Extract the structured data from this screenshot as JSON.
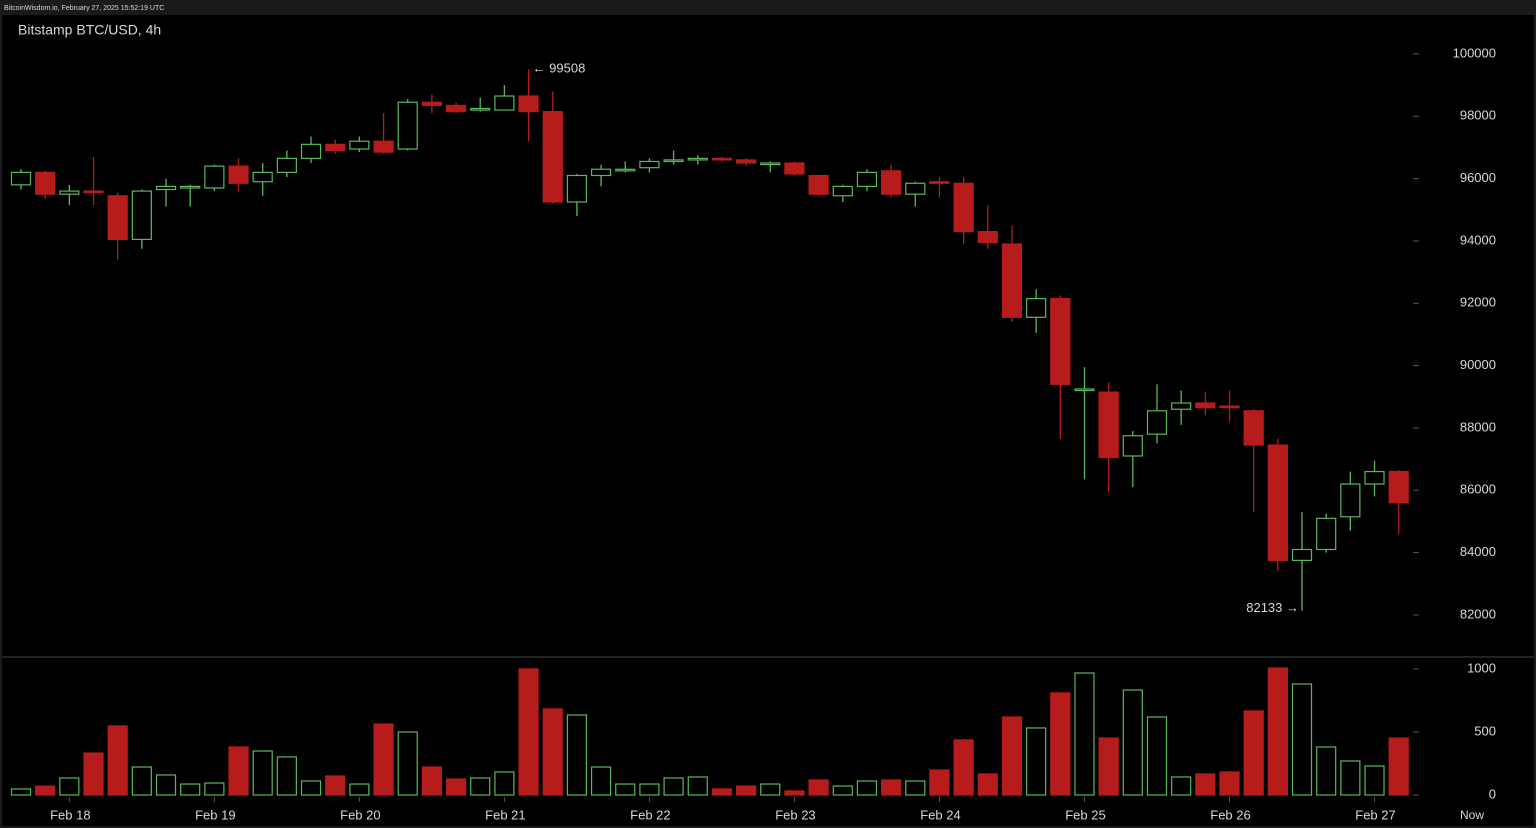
{
  "header": "BitcoinWisdom.io, February 27, 2025 15:52:19 UTC",
  "now_label": "Now",
  "chart_data": [
    {
      "type": "candlestick",
      "title": "Bitstamp BTC/USD, 4h",
      "up_color": "#5cb85c",
      "down_color": "#b71c1c",
      "open": [
        95800,
        96200,
        95500,
        95600,
        95450,
        94050,
        95650,
        95700,
        95700,
        96400,
        95900,
        96200,
        96650,
        97100,
        96950,
        97200,
        96950,
        98450,
        98350,
        98200,
        98200,
        98650,
        98150,
        95250,
        96100,
        96250,
        96350,
        96550,
        96600,
        96650,
        96600,
        96450,
        96500,
        96100,
        95450,
        95750,
        96250,
        95500,
        95900,
        95850,
        94300,
        93900,
        91550,
        92150,
        89200,
        89150,
        87100,
        87800,
        88600,
        88800,
        88700,
        88550,
        87450,
        83750,
        84100,
        85150,
        86200,
        86600
      ],
      "high": [
        96300,
        96250,
        95800,
        96700,
        95550,
        95650,
        96000,
        95800,
        96450,
        96650,
        96500,
        96900,
        97350,
        97250,
        97350,
        98100,
        98550,
        98700,
        98450,
        98600,
        99000,
        99508,
        98800,
        96150,
        96450,
        96550,
        96650,
        96900,
        96750,
        96700,
        96650,
        96550,
        96550,
        96100,
        95800,
        96300,
        96450,
        95900,
        96050,
        96050,
        95150,
        94500,
        92450,
        92250,
        89950,
        89450,
        87900,
        89400,
        89200,
        89150,
        89200,
        88600,
        87650,
        85300,
        85250,
        86600,
        86950,
        86650
      ],
      "low": [
        95650,
        95350,
        95150,
        95150,
        93400,
        93750,
        95100,
        95100,
        95600,
        95600,
        95450,
        96050,
        96500,
        96800,
        96850,
        96800,
        96900,
        98100,
        98100,
        98150,
        98200,
        97200,
        95200,
        94800,
        95750,
        96200,
        96200,
        96450,
        96450,
        96550,
        96400,
        96200,
        96100,
        95450,
        95250,
        95600,
        95400,
        95100,
        95400,
        93900,
        93750,
        91400,
        91050,
        87650,
        86350,
        85950,
        86100,
        87500,
        88100,
        88400,
        88200,
        85300,
        83400,
        82133,
        84000,
        84700,
        85800,
        84600
      ],
      "close": [
        96200,
        95500,
        95600,
        95550,
        94050,
        95600,
        95750,
        95750,
        96400,
        95850,
        96200,
        96650,
        97100,
        96900,
        97200,
        96850,
        98450,
        98350,
        98150,
        98250,
        98650,
        98150,
        95250,
        96100,
        96300,
        96300,
        96550,
        96600,
        96650,
        96600,
        96500,
        96500,
        96150,
        95500,
        95750,
        96200,
        95500,
        95850,
        95850,
        94300,
        93950,
        91550,
        92150,
        89400,
        89250,
        87050,
        87750,
        88550,
        88800,
        88650,
        88650,
        87450,
        83750,
        84100,
        85100,
        86200,
        86600,
        85600
      ],
      "ylim": [
        80650,
        101250
      ],
      "yticks": [
        82000,
        84000,
        86000,
        88000,
        90000,
        92000,
        94000,
        96000,
        98000,
        100000
      ],
      "annotations": [
        "← 99508",
        "82133 →"
      ]
    },
    {
      "type": "bar",
      "categories": [
        null,
        null,
        "Feb 18",
        null,
        null,
        null,
        null,
        null,
        "Feb 19",
        null,
        null,
        null,
        null,
        null,
        "Feb 20",
        null,
        null,
        null,
        null,
        null,
        "Feb 21",
        null,
        null,
        null,
        null,
        null,
        "Feb 22",
        null,
        null,
        null,
        null,
        null,
        "Feb 23",
        null,
        null,
        null,
        null,
        null,
        "Feb 24",
        null,
        null,
        null,
        null,
        null,
        "Feb 25",
        null,
        null,
        null,
        null,
        null,
        "Feb 26",
        null,
        null,
        null,
        null,
        null,
        "Feb 27",
        null
      ],
      "values": [
        48,
        70,
        135,
        333,
        548,
        222,
        159,
        87,
        95,
        381,
        349,
        302,
        111,
        151,
        87,
        563,
        500,
        222,
        127,
        135,
        183,
        1000,
        683,
        635,
        222,
        87,
        87,
        135,
        143,
        48,
        71,
        87,
        32,
        119,
        71,
        111,
        119,
        111,
        198,
        437,
        167,
        619,
        532,
        810,
        968,
        452,
        833,
        619,
        143,
        167,
        183,
        667,
        1008,
        881,
        381,
        270,
        230,
        452
      ],
      "ylim": [
        0,
        1095
      ],
      "yticks": [
        0,
        500,
        1000
      ]
    }
  ]
}
